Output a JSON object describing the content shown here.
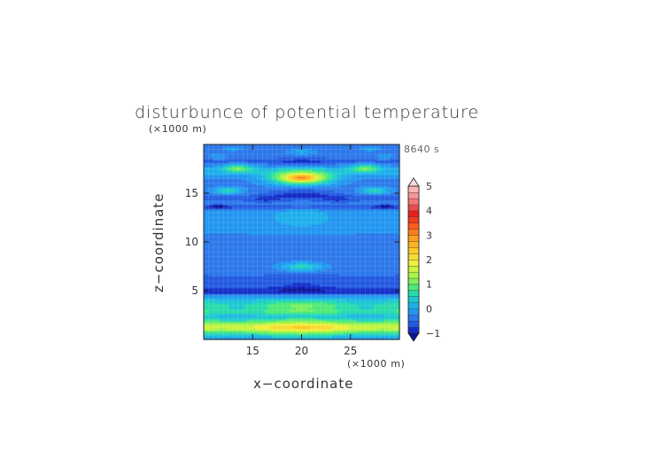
{
  "chart_data": {
    "type": "heatmap",
    "title": "disturbunce of potential temperature",
    "xlabel": "x−coordinate",
    "ylabel": "z−coordinate",
    "x_unit": "(×1000 m)",
    "z_unit": "(×1000 m)",
    "time_label": "8640 s",
    "xlim": [
      10,
      30
    ],
    "ylim": [
      0,
      20
    ],
    "x_ticks": [
      "15",
      "20",
      "25"
    ],
    "x_tick_values": [
      15,
      20,
      25
    ],
    "y_ticks": [
      "5",
      "10",
      "15"
    ],
    "y_tick_values": [
      5,
      10,
      15
    ],
    "grid": true,
    "colorbar": {
      "min": -1,
      "max": 5,
      "step": 0.25,
      "tick_values": [
        -1,
        0,
        1,
        2,
        3,
        4,
        5
      ],
      "tick_labels": [
        "−1",
        "0",
        "1",
        "2",
        "3",
        "4",
        "5"
      ]
    },
    "background_value": -0.25,
    "bands": [
      {
        "z": 1.0,
        "h": 0.9,
        "v": 1.0,
        "mod": 0.15
      },
      {
        "z": 1.5,
        "h": 0.5,
        "v": 0.6,
        "mod": 0.1
      },
      {
        "z": 2.1,
        "h": 0.4,
        "v": 0.3,
        "mod": 0.2
      },
      {
        "z": 2.8,
        "h": 0.35,
        "v": 0.5,
        "mod": 0.15
      },
      {
        "z": 3.5,
        "h": 0.7,
        "v": 1.0,
        "mod": 0.25
      },
      {
        "z": 4.3,
        "h": 0.4,
        "v": 0.0,
        "mod": 0.1
      },
      {
        "z": 5.0,
        "h": 0.45,
        "v": -0.9,
        "mod": 0.1
      },
      {
        "z": 6.2,
        "h": 0.6,
        "v": -0.5,
        "mod": 0.15
      },
      {
        "z": 12.5,
        "h": 2.8,
        "v": -0.05,
        "mod": 0.1
      },
      {
        "z": 13.6,
        "h": 0.25,
        "v": -0.85,
        "mod": 0.0
      },
      {
        "z": 14.5,
        "h": 0.4,
        "v": -0.6,
        "mod": 0.1
      },
      {
        "z": 17.3,
        "h": 0.6,
        "v": 0.3,
        "mod": 0.2
      },
      {
        "z": 18.3,
        "h": 0.35,
        "v": -0.55,
        "mod": 0.1
      }
    ],
    "blobs": [
      {
        "x": 20,
        "z": 1.2,
        "rx": 10,
        "rz": 0.5,
        "v": 0.8
      },
      {
        "x": 20,
        "z": 5.5,
        "rx": 2.5,
        "rz": 0.45,
        "v": -0.6
      },
      {
        "x": 20,
        "z": 7.5,
        "rx": 2.2,
        "rz": 0.45,
        "v": 0.9
      },
      {
        "x": 20,
        "z": 10.0,
        "rx": 3.0,
        "rz": 1.8,
        "v": -0.35
      },
      {
        "x": 20,
        "z": 12.5,
        "rx": 4.0,
        "rz": 1.4,
        "v": 0.15
      },
      {
        "x": 20,
        "z": 15.0,
        "rx": 3.5,
        "rz": 0.5,
        "v": -0.9
      },
      {
        "x": 20,
        "z": 16.6,
        "rx": 3.2,
        "rz": 0.7,
        "v": 2.2
      },
      {
        "x": 20,
        "z": 16.6,
        "rx": 1.6,
        "rz": 0.35,
        "v": 1.4
      },
      {
        "x": 20,
        "z": 18.2,
        "rx": 2.5,
        "rz": 0.35,
        "v": -0.6
      },
      {
        "x": 20,
        "z": 19.3,
        "rx": 1.5,
        "rz": 0.3,
        "v": 0.3
      },
      {
        "x": 13.5,
        "z": 17.6,
        "rx": 1.6,
        "rz": 0.45,
        "v": 1.1
      },
      {
        "x": 26.5,
        "z": 17.6,
        "rx": 1.6,
        "rz": 0.45,
        "v": 1.1
      },
      {
        "x": 12.5,
        "z": 15.3,
        "rx": 1.4,
        "rz": 0.35,
        "v": 0.9
      },
      {
        "x": 27.5,
        "z": 15.3,
        "rx": 1.4,
        "rz": 0.35,
        "v": 0.9
      },
      {
        "x": 16.3,
        "z": 14.3,
        "rx": 1.5,
        "rz": 0.5,
        "v": -0.6
      },
      {
        "x": 23.7,
        "z": 14.3,
        "rx": 1.5,
        "rz": 0.5,
        "v": -0.6
      },
      {
        "x": 11.5,
        "z": 13.7,
        "rx": 0.8,
        "rz": 0.2,
        "v": -0.9
      },
      {
        "x": 28.5,
        "z": 13.7,
        "rx": 0.8,
        "rz": 0.2,
        "v": -0.9
      },
      {
        "x": 11.5,
        "z": 18.8,
        "rx": 1.0,
        "rz": 0.3,
        "v": 0.2
      },
      {
        "x": 28.5,
        "z": 18.8,
        "rx": 1.0,
        "rz": 0.3,
        "v": 0.2
      },
      {
        "x": 13.0,
        "z": 19.6,
        "rx": 1.0,
        "rz": 0.2,
        "v": 0.4
      },
      {
        "x": 27.0,
        "z": 19.6,
        "rx": 1.0,
        "rz": 0.2,
        "v": 0.4
      }
    ]
  }
}
